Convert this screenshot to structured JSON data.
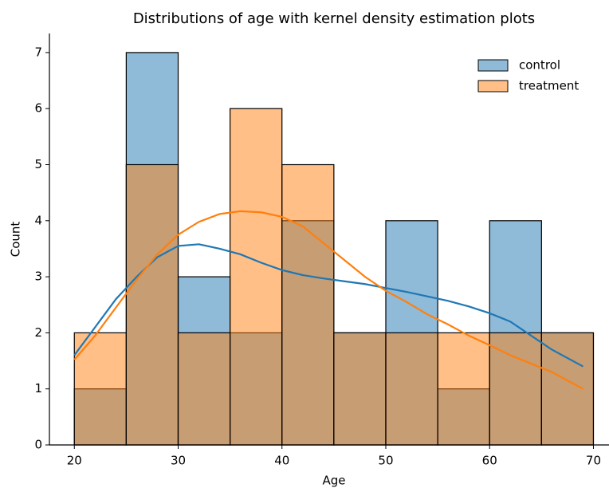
{
  "chart_data": {
    "type": "histogram",
    "title": "Distributions of age with kernel density estimation plots",
    "xlabel": "Age",
    "ylabel": "Count",
    "bins": [
      20,
      25,
      30,
      35,
      40,
      45,
      50,
      55,
      60,
      65,
      70
    ],
    "xlim": [
      17.6,
      71.5
    ],
    "ylim": [
      0,
      7.34
    ],
    "xticks": [
      20,
      30,
      40,
      50,
      60,
      70
    ],
    "yticks": [
      0,
      1,
      2,
      3,
      4,
      5,
      6,
      7
    ],
    "legend": "upper right",
    "series": [
      {
        "name": "control",
        "color": "#1f77b4",
        "values": [
          1,
          7,
          3,
          2,
          4,
          2,
          4,
          1,
          4,
          2
        ],
        "kde": {
          "x": [
            20,
            22,
            24,
            26,
            28,
            30,
            32,
            34,
            36,
            38,
            40,
            42,
            44,
            46,
            48,
            50,
            52,
            54,
            56,
            58,
            60,
            62,
            64,
            66,
            68,
            69
          ],
          "y": [
            1.6,
            2.1,
            2.6,
            3.0,
            3.35,
            3.55,
            3.58,
            3.5,
            3.4,
            3.25,
            3.12,
            3.03,
            2.97,
            2.92,
            2.87,
            2.8,
            2.73,
            2.65,
            2.57,
            2.47,
            2.35,
            2.2,
            1.95,
            1.7,
            1.5,
            1.4
          ]
        }
      },
      {
        "name": "treatment",
        "color": "#ff7f0e",
        "values": [
          2,
          5,
          2,
          6,
          5,
          2,
          2,
          2,
          2,
          2
        ],
        "kde": {
          "x": [
            20,
            22,
            24,
            26,
            28,
            30,
            32,
            34,
            36,
            38,
            40,
            42,
            44,
            46,
            48,
            50,
            52,
            54,
            56,
            58,
            60,
            62,
            64,
            66,
            68,
            69
          ],
          "y": [
            1.52,
            1.95,
            2.45,
            2.95,
            3.4,
            3.75,
            3.98,
            4.12,
            4.17,
            4.15,
            4.07,
            3.9,
            3.6,
            3.3,
            3.0,
            2.75,
            2.55,
            2.33,
            2.15,
            1.95,
            1.78,
            1.6,
            1.45,
            1.3,
            1.1,
            1.0
          ]
        }
      }
    ]
  }
}
